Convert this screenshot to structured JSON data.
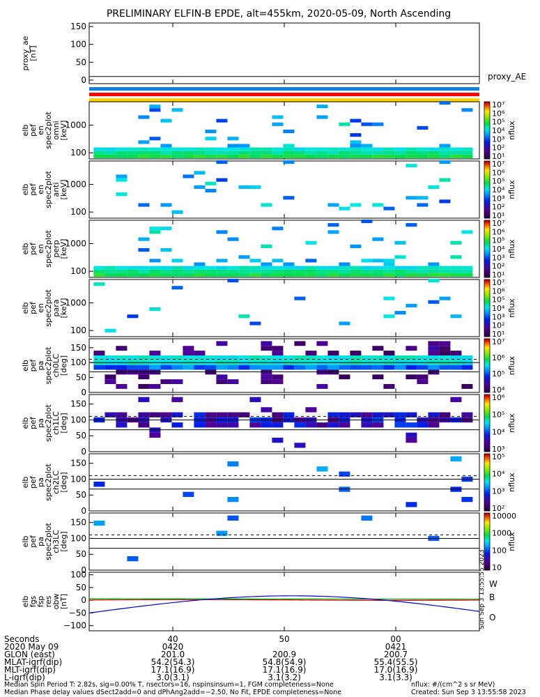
{
  "title": "PRELIMINARY ELFIN-B EPDE, alt=455km, 2020-05-09, North Ascending",
  "chart_data": {
    "type": "heatmap",
    "x_axis": {
      "label": "Seconds",
      "ticks": [
        "40",
        "50",
        "00"
      ],
      "range_seconds": [
        32.5,
        67.5
      ]
    },
    "panels": [
      {
        "id": "proxy_ae",
        "ylabel": [
          "proxy_ae",
          "[nT]"
        ],
        "yticks": [
          "150",
          "100",
          "50",
          "0"
        ],
        "ylim": [
          -10,
          160
        ],
        "series": [
          {
            "name": "proxy_AE",
            "color": "#000000",
            "value": 10
          }
        ]
      },
      {
        "id": "status_bars",
        "colors": [
          "#1080e0",
          "#ff0000",
          "#ffd000"
        ]
      },
      {
        "id": "en_omni",
        "ylabel": [
          "elb",
          "pef",
          "en",
          "spec2plot",
          "omni",
          "[keV]"
        ],
        "yticks": [
          "1000",
          "100"
        ],
        "scale": "log",
        "ylim": [
          60,
          7000
        ],
        "colorbar": {
          "label": "nflux",
          "ticks": [
            "10⁷",
            "10⁶",
            "10⁵",
            "10⁴",
            "10³",
            "10²",
            "10¹"
          ]
        }
      },
      {
        "id": "en_anti",
        "ylabel": [
          "elb",
          "pef",
          "en",
          "spec2plot",
          "anti",
          "[keV]"
        ],
        "yticks": [
          "1000",
          "100"
        ],
        "scale": "log",
        "ylim": [
          60,
          7000
        ],
        "colorbar": {
          "label": "nflux",
          "ticks": [
            "10⁷",
            "10⁶",
            "10⁵",
            "10⁴",
            "10³",
            "10²",
            "10¹"
          ]
        }
      },
      {
        "id": "en_perp",
        "ylabel": [
          "elb",
          "pef",
          "en",
          "spec2plot",
          "perp",
          "[keV]"
        ],
        "yticks": [
          "1000",
          "100"
        ],
        "scale": "log",
        "ylim": [
          60,
          7000
        ],
        "colorbar": {
          "label": "nflux",
          "ticks": [
            "10⁷",
            "10⁶",
            "10⁵",
            "10⁴",
            "10³",
            "10²",
            "10¹"
          ]
        }
      },
      {
        "id": "en_para",
        "ylabel": [
          "elb",
          "pef",
          "en",
          "spec2plot",
          "para",
          "[keV]"
        ],
        "yticks": [
          "1000",
          "100"
        ],
        "scale": "log",
        "ylim": [
          60,
          7000
        ],
        "colorbar": {
          "label": "nflux",
          "ticks": [
            "10⁷",
            "10⁶",
            "10⁵",
            "10⁴",
            "10³",
            "10²",
            "10¹"
          ]
        }
      },
      {
        "id": "pa_ch0",
        "ylabel": [
          "elb",
          "pef",
          "pa",
          "spec2plot",
          "ch0LC",
          "[deg]"
        ],
        "yticks": [
          "150",
          "100",
          "50",
          "0"
        ],
        "ylim": [
          0,
          180
        ],
        "lines": {
          "solid": [
            69,
            100
          ],
          "dashed": [
            111
          ]
        },
        "colorbar": {
          "label": "nflux",
          "ticks": [
            "10⁷",
            "10⁶",
            "10⁵",
            "10⁴"
          ]
        }
      },
      {
        "id": "pa_ch1",
        "ylabel": [
          "elb",
          "pef",
          "pa",
          "spec2plot",
          "ch1LC",
          "[deg]"
        ],
        "yticks": [
          "150",
          "100",
          "50",
          "0"
        ],
        "ylim": [
          0,
          180
        ],
        "lines": {
          "solid": [
            69,
            100
          ],
          "dashed": [
            111
          ]
        },
        "colorbar": {
          "label": "nflux",
          "ticks": [
            "10⁶",
            "10⁵",
            "10⁴",
            "10³"
          ]
        }
      },
      {
        "id": "pa_ch2",
        "ylabel": [
          "elb",
          "pef",
          "pa",
          "spec2plot",
          "ch2LC",
          "[deg]"
        ],
        "yticks": [
          "150",
          "100",
          "50",
          "0"
        ],
        "ylim": [
          0,
          180
        ],
        "lines": {
          "solid": [
            69,
            100
          ],
          "dashed": [
            111
          ]
        },
        "colorbar": {
          "label": "nflux",
          "ticks": [
            "10⁵",
            "10⁴",
            "10³",
            "10²"
          ]
        }
      },
      {
        "id": "pa_ch3",
        "ylabel": [
          "elb",
          "pef",
          "pa",
          "spec2plot",
          "ch3LC",
          "[deg]"
        ],
        "yticks": [
          "150",
          "100",
          "50",
          "0"
        ],
        "ylim": [
          0,
          180
        ],
        "lines": {
          "solid": [
            69,
            100
          ],
          "dashed": [
            111
          ]
        },
        "colorbar": {
          "label": "nflux",
          "ticks": [
            "10000",
            "1000",
            "100",
            "10"
          ]
        }
      },
      {
        "id": "fgs",
        "ylabel": [
          "elb",
          "fgs",
          "fsp",
          "res",
          "obw",
          "[nT]"
        ],
        "yticks": [
          "100",
          "50",
          "0",
          "−50",
          "−100"
        ],
        "ylim": [
          -120,
          110
        ],
        "series": [
          {
            "name": "W",
            "color": "#cc0000"
          },
          {
            "name": "B",
            "color": "#00aa00"
          },
          {
            "name": "O",
            "color": "#0000cc"
          }
        ],
        "side_label": "Sun Sep 3 13:55:55 2023"
      }
    ]
  },
  "ephemeris": {
    "rows": [
      {
        "label": "Seconds",
        "values": [
          "40",
          "50",
          "00"
        ]
      },
      {
        "label": "2020 May 09",
        "values": [
          "0420",
          "",
          "0421"
        ]
      },
      {
        "label": "GLON (east)",
        "values": [
          "201.0",
          "200.9",
          "200.7"
        ]
      },
      {
        "label": "MLAT-igrf(dip)",
        "values": [
          "54.2(54.3)",
          "54.8(54.9)",
          "55.4(55.5)"
        ]
      },
      {
        "label": "MLT-igrf(dip)",
        "values": [
          "17.1(16.9)",
          "17.1(16.9)",
          "17.0(16.9)"
        ]
      },
      {
        "label": "L-igrf(dip)",
        "values": [
          "3.0(3.1)",
          "3.1(3.2)",
          "3.1(3.3)"
        ]
      }
    ]
  },
  "footer": {
    "line1": "Median Spin Period T: 2.82s, sig=0.00% T, nsectors=16, nspinsinsum=1, FGM completeness=None",
    "line2": "Median Phase delay values dSect2add=0 and dPhAng2add=−2.50, No Fit, EPDE completeness=None",
    "units": "nflux: #/(cm^2 s sr MeV)",
    "created": "Created: Sun Sep  3 13:55:58 2023"
  }
}
